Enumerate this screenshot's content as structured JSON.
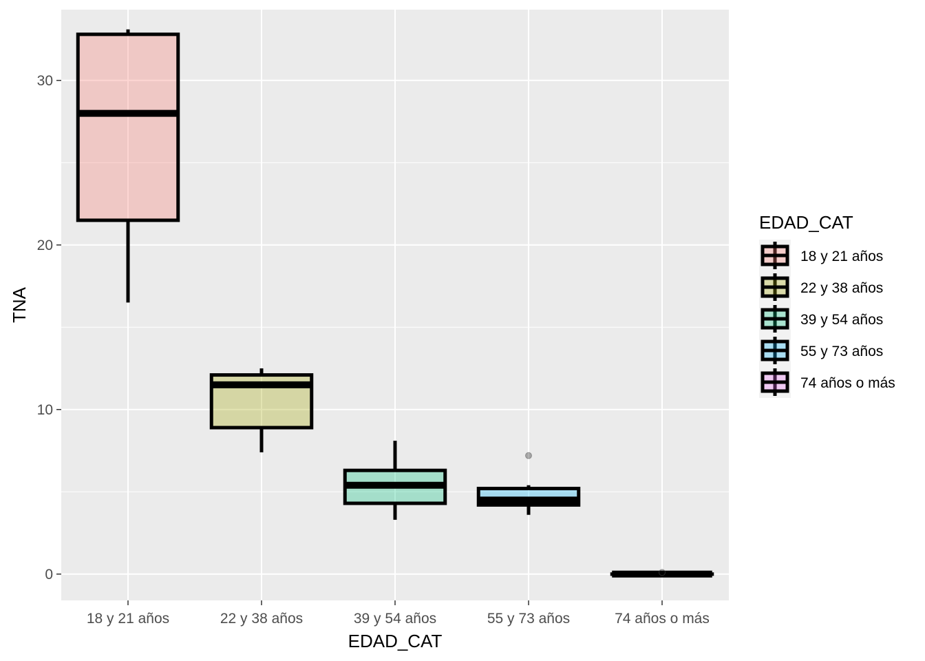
{
  "chart_data": {
    "type": "boxplot",
    "xlabel": "EDAD_CAT",
    "ylabel": "TNA",
    "ylim": [
      -1.6,
      34.3
    ],
    "yticks": [
      0,
      10,
      20,
      30
    ],
    "grid": true,
    "legend": {
      "title": "EDAD_CAT",
      "position": "right"
    },
    "categories": [
      "18 y 21 años",
      "22 y 38 años",
      "39 y 54 años",
      "55 y 73 años",
      "74 años o más"
    ],
    "series": [
      {
        "category": "18 y 21 años",
        "fill": "#F8766D",
        "whisker_low": 16.5,
        "q1": 21.5,
        "median": 28.0,
        "q3": 32.8,
        "whisker_high": 33.1,
        "outliers": []
      },
      {
        "category": "22 y 38 años",
        "fill": "#A3A500",
        "whisker_low": 7.4,
        "q1": 8.9,
        "median": 11.5,
        "q3": 12.1,
        "whisker_high": 12.5,
        "outliers": []
      },
      {
        "category": "39 y 54 años",
        "fill": "#00BF7D",
        "whisker_low": 3.3,
        "q1": 4.3,
        "median": 5.4,
        "q3": 6.3,
        "whisker_high": 8.1,
        "outliers": []
      },
      {
        "category": "55 y 73 años",
        "fill": "#00B0F6",
        "whisker_low": 3.6,
        "q1": 4.2,
        "median": 4.5,
        "q3": 5.2,
        "whisker_high": 5.4,
        "outliers": [
          7.2
        ]
      },
      {
        "category": "74 años o más",
        "fill": "#E76BF3",
        "whisker_low": 0.0,
        "q1": 0.0,
        "median": 0.0,
        "q3": 0.0,
        "whisker_high": 0.0,
        "outliers": [
          0.1
        ]
      }
    ]
  }
}
